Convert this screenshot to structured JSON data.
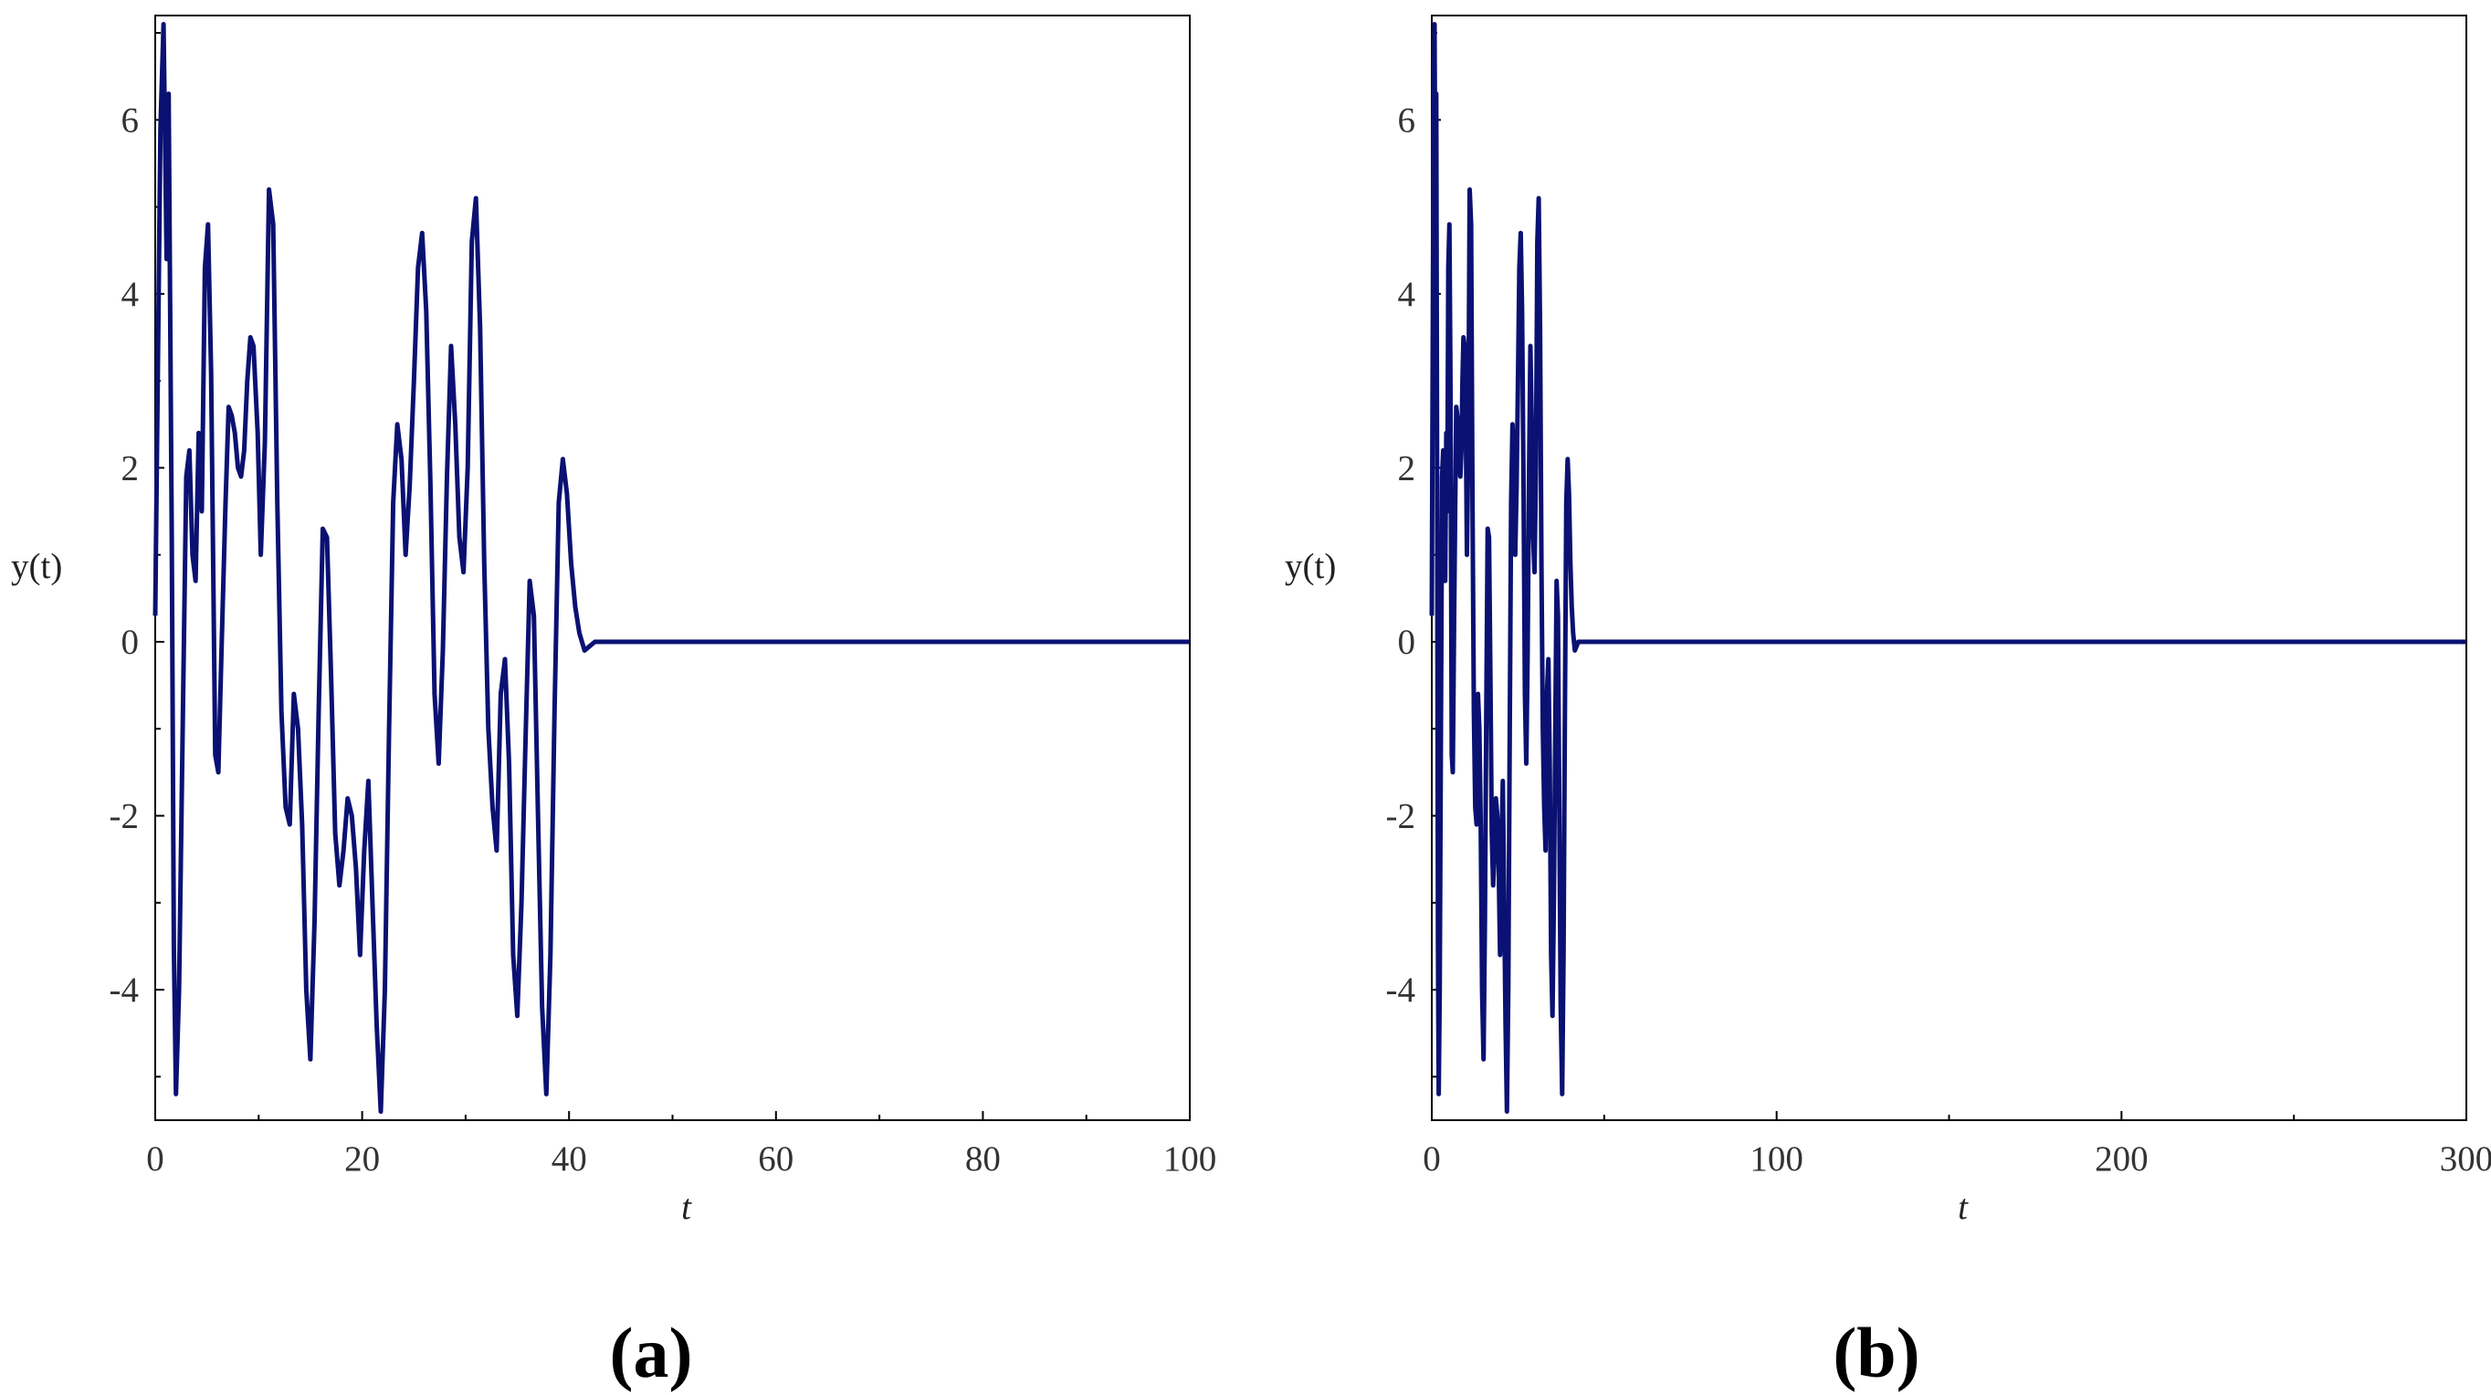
{
  "colors": {
    "line": "#0a1172",
    "frame": "#000000",
    "background": "#ffffff"
  },
  "chart_data": [
    {
      "type": "line",
      "panel_label": "(a)",
      "xlabel": "t",
      "ylabel": "y(t)",
      "xlim": [
        0,
        100
      ],
      "ylim": [
        -5.5,
        7.2
      ],
      "xticks": [
        "0",
        "20",
        "40",
        "60",
        "80",
        "100"
      ],
      "yticks": [
        "-4",
        "-2",
        "0",
        "2",
        "4",
        "6"
      ],
      "grid": false,
      "series": [
        {
          "x": [
            0,
            0.5,
            0.8,
            1.1,
            1.3,
            1.6,
            1.8,
            2.0,
            2.3,
            2.7,
            3.0,
            3.3,
            3.6,
            3.9,
            4.2,
            4.5,
            4.8,
            5.1,
            5.4,
            5.8,
            6.1,
            6.5,
            6.8,
            7.1,
            7.4,
            7.7,
            8.0,
            8.3,
            8.6,
            8.9,
            9.2,
            9.5,
            9.9,
            10.2,
            10.6,
            11.0,
            11.4,
            11.8,
            12.2,
            12.6,
            13.0,
            13.4,
            13.8,
            14.2,
            14.6,
            15.0,
            15.4,
            15.8,
            16.2,
            16.6,
            17.0,
            17.4,
            17.8,
            18.2,
            18.6,
            19.0,
            19.4,
            19.8,
            20.2,
            20.6,
            21.0,
            21.4,
            21.8,
            22.2,
            22.6,
            23.0,
            23.4,
            23.8,
            24.2,
            24.6,
            25.0,
            25.4,
            25.8,
            26.2,
            26.6,
            27.0,
            27.4,
            27.8,
            28.2,
            28.6,
            29.0,
            29.4,
            29.8,
            30.2,
            30.6,
            31.0,
            31.4,
            31.8,
            32.2,
            32.6,
            33.0,
            33.4,
            33.8,
            34.2,
            34.6,
            35.0,
            35.4,
            35.8,
            36.2,
            36.6,
            37.0,
            37.4,
            37.8,
            38.2,
            38.6,
            39.0,
            39.4,
            39.8,
            40.2,
            40.6,
            41.0,
            41.5,
            42.0,
            42.5,
            43.0,
            43.5,
            44.0,
            45.0,
            50.0,
            60.0,
            70.0,
            80.0,
            90.0,
            100.0
          ],
          "y": [
            0.3,
            5.9,
            7.1,
            4.4,
            6.3,
            1.2,
            -3.5,
            -5.2,
            -4.0,
            -0.6,
            1.9,
            2.2,
            1.0,
            0.7,
            2.4,
            1.5,
            4.3,
            4.8,
            3.1,
            -1.3,
            -1.5,
            0.3,
            1.6,
            2.7,
            2.6,
            2.4,
            2.0,
            1.9,
            2.2,
            3.0,
            3.5,
            3.4,
            2.4,
            1.0,
            2.3,
            5.2,
            4.8,
            1.6,
            -0.8,
            -1.9,
            -2.1,
            -0.6,
            -1.0,
            -2.1,
            -4.0,
            -4.8,
            -3.2,
            -0.8,
            1.3,
            1.2,
            -0.4,
            -2.2,
            -2.8,
            -2.4,
            -1.8,
            -2.0,
            -2.6,
            -3.6,
            -2.4,
            -1.6,
            -3.0,
            -4.4,
            -5.4,
            -4.0,
            -1.0,
            1.6,
            2.5,
            2.1,
            1.0,
            1.8,
            3.0,
            4.3,
            4.7,
            3.8,
            1.8,
            -0.6,
            -1.4,
            -0.1,
            1.9,
            3.4,
            2.5,
            1.2,
            0.8,
            2.0,
            4.6,
            5.1,
            3.6,
            0.9,
            -1.0,
            -1.9,
            -2.4,
            -0.6,
            -0.2,
            -1.4,
            -3.6,
            -4.3,
            -3.0,
            -1.1,
            0.7,
            0.3,
            -2.0,
            -4.2,
            -5.2,
            -3.6,
            -0.8,
            1.6,
            2.1,
            1.7,
            0.9,
            0.4,
            0.1,
            -0.1,
            -0.05,
            0.0,
            0.0,
            0.0,
            0.0,
            0.0,
            0.0,
            0.0,
            0.0,
            0.0,
            0.0,
            0.0
          ]
        }
      ]
    },
    {
      "type": "line",
      "panel_label": "(b)",
      "xlabel": "t",
      "ylabel": "y(t)",
      "xlim": [
        0,
        300
      ],
      "ylim": [
        -5.5,
        7.2
      ],
      "xticks": [
        "0",
        "100",
        "200",
        "300"
      ],
      "yticks": [
        "-4",
        "-2",
        "0",
        "2",
        "4",
        "6"
      ],
      "grid": false,
      "series": [
        {
          "x": [
            0,
            0.5,
            0.8,
            1.1,
            1.3,
            1.6,
            1.8,
            2.0,
            2.3,
            2.7,
            3.0,
            3.3,
            3.6,
            3.9,
            4.2,
            4.5,
            4.8,
            5.1,
            5.4,
            5.8,
            6.1,
            6.5,
            6.8,
            7.1,
            7.4,
            7.7,
            8.0,
            8.3,
            8.6,
            8.9,
            9.2,
            9.5,
            9.9,
            10.2,
            10.6,
            11.0,
            11.4,
            11.8,
            12.2,
            12.6,
            13.0,
            13.4,
            13.8,
            14.2,
            14.6,
            15.0,
            15.4,
            15.8,
            16.2,
            16.6,
            17.0,
            17.4,
            17.8,
            18.2,
            18.6,
            19.0,
            19.4,
            19.8,
            20.2,
            20.6,
            21.0,
            21.4,
            21.8,
            22.2,
            22.6,
            23.0,
            23.4,
            23.8,
            24.2,
            24.6,
            25.0,
            25.4,
            25.8,
            26.2,
            26.6,
            27.0,
            27.4,
            27.8,
            28.2,
            28.6,
            29.0,
            29.4,
            29.8,
            30.2,
            30.6,
            31.0,
            31.4,
            31.8,
            32.2,
            32.6,
            33.0,
            33.4,
            33.8,
            34.2,
            34.6,
            35.0,
            35.4,
            35.8,
            36.2,
            36.6,
            37.0,
            37.4,
            37.8,
            38.2,
            38.6,
            39.0,
            39.4,
            39.8,
            40.2,
            40.6,
            41.0,
            41.5,
            42.0,
            42.5,
            43.0,
            43.5,
            44.0,
            45.0,
            60.0,
            100.0,
            150.0,
            200.0,
            250.0,
            300.0
          ],
          "y": [
            0.3,
            5.9,
            7.1,
            4.4,
            6.3,
            1.2,
            -3.5,
            -5.2,
            -4.0,
            -0.6,
            1.9,
            2.2,
            1.0,
            0.7,
            2.4,
            1.5,
            4.3,
            4.8,
            3.1,
            -1.3,
            -1.5,
            0.3,
            1.6,
            2.7,
            2.6,
            2.4,
            2.0,
            1.9,
            2.2,
            3.0,
            3.5,
            3.4,
            2.4,
            1.0,
            2.3,
            5.2,
            4.8,
            1.6,
            -0.8,
            -1.9,
            -2.1,
            -0.6,
            -1.0,
            -2.1,
            -4.0,
            -4.8,
            -3.2,
            -0.8,
            1.3,
            1.2,
            -0.4,
            -2.2,
            -2.8,
            -2.4,
            -1.8,
            -2.0,
            -2.6,
            -3.6,
            -2.4,
            -1.6,
            -3.0,
            -4.4,
            -5.4,
            -4.0,
            -1.0,
            1.6,
            2.5,
            2.1,
            1.0,
            1.8,
            3.0,
            4.3,
            4.7,
            3.8,
            1.8,
            -0.6,
            -1.4,
            -0.1,
            1.9,
            3.4,
            2.5,
            1.2,
            0.8,
            2.0,
            4.6,
            5.1,
            3.6,
            0.9,
            -1.0,
            -1.9,
            -2.4,
            -0.6,
            -0.2,
            -1.4,
            -3.6,
            -4.3,
            -3.0,
            -1.1,
            0.7,
            0.3,
            -2.0,
            -4.2,
            -5.2,
            -3.6,
            -0.8,
            1.6,
            2.1,
            1.7,
            0.9,
            0.4,
            0.1,
            -0.1,
            -0.05,
            0.0,
            0.0,
            0.0,
            0.0,
            0.0,
            0.0,
            0.0,
            0.0,
            0.0,
            0.0,
            0.0
          ]
        }
      ]
    }
  ]
}
